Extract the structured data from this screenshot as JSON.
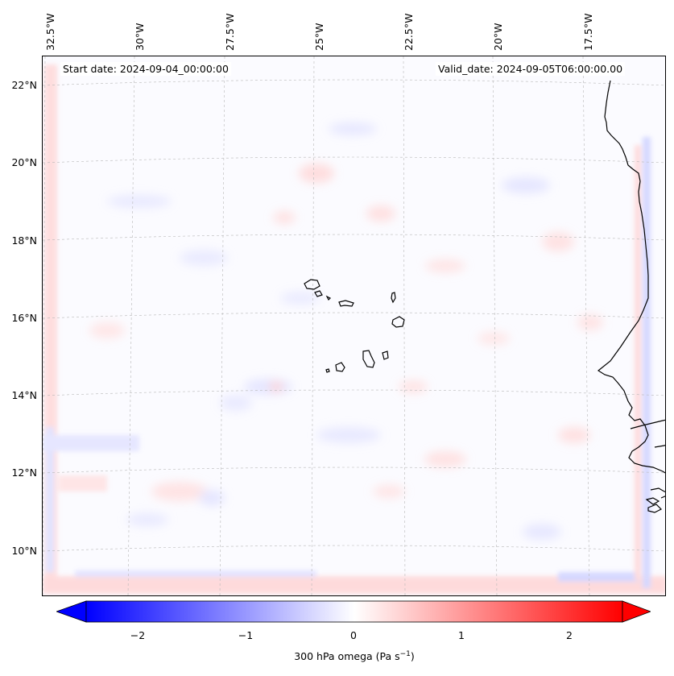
{
  "map": {
    "start_date": "Start date: 2024-09-04_00:00:00",
    "valid_date": "Valid_date: 2024-09-05T06:00:00.00",
    "lon_labels": [
      "32.5°W",
      "30°W",
      "27.5°W",
      "25°W",
      "22.5°W",
      "20°W",
      "17.5°W"
    ],
    "lat_labels": [
      "22°N",
      "20°N",
      "18°N",
      "16°N",
      "14°N",
      "12°N",
      "10°N"
    ],
    "field": "omega",
    "level": "300 hPa"
  },
  "colorbar": {
    "ticks": [
      "−2",
      "−1",
      "0",
      "1",
      "2"
    ],
    "tick_values": [
      -2,
      -1,
      0,
      1,
      2
    ],
    "range": [
      -2.5,
      2.5
    ],
    "label": "300 hPa omega (Pa s",
    "label_sup": "−1",
    "label_close": ")",
    "cmap_low": "#0000ff",
    "cmap_mid": "#ffffff",
    "cmap_high": "#ff0000"
  },
  "colors": {
    "coastline": "#000000",
    "gridline": "#b0b0b0"
  }
}
